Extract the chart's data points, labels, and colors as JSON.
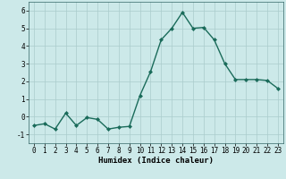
{
  "x": [
    0,
    1,
    2,
    3,
    4,
    5,
    6,
    7,
    8,
    9,
    10,
    11,
    12,
    13,
    14,
    15,
    16,
    17,
    18,
    19,
    20,
    21,
    22,
    23
  ],
  "y": [
    -0.5,
    -0.4,
    -0.7,
    0.2,
    -0.5,
    -0.05,
    -0.15,
    -0.7,
    -0.6,
    -0.55,
    1.2,
    2.55,
    4.35,
    5.0,
    5.9,
    5.0,
    5.05,
    4.35,
    3.0,
    2.1,
    2.1,
    2.1,
    2.05,
    1.6
  ],
  "line_color": "#1a6b5a",
  "marker": "D",
  "marker_size": 2.0,
  "bg_color": "#cce9e9",
  "grid_color": "#aacccc",
  "xlabel": "Humidex (Indice chaleur)",
  "ylim": [
    -1.5,
    6.5
  ],
  "xlim": [
    -0.5,
    23.5
  ],
  "yticks": [
    -1,
    0,
    1,
    2,
    3,
    4,
    5,
    6
  ],
  "xticks": [
    0,
    1,
    2,
    3,
    4,
    5,
    6,
    7,
    8,
    9,
    10,
    11,
    12,
    13,
    14,
    15,
    16,
    17,
    18,
    19,
    20,
    21,
    22,
    23
  ],
  "xlabel_fontsize": 6.5,
  "tick_fontsize": 5.5,
  "linewidth": 1.0
}
